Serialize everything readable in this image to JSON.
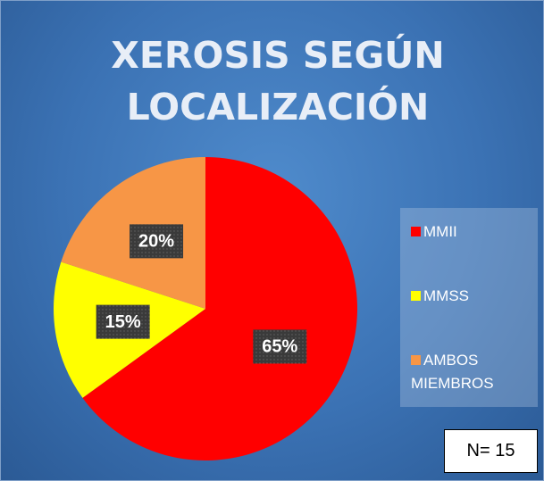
{
  "chart_data": {
    "type": "pie",
    "title": "XEROSIS SEGÚN LOCALIZACIÓN",
    "categories": [
      "MMII",
      "MMSS",
      "AMBOS MIEMBROS"
    ],
    "values": [
      65,
      15,
      20
    ],
    "value_labels": [
      "65%",
      "15%",
      "20%"
    ],
    "colors": [
      "#ff0000",
      "#ffff00",
      "#f79646"
    ],
    "legend": "right",
    "annotation": "N= 15"
  }
}
